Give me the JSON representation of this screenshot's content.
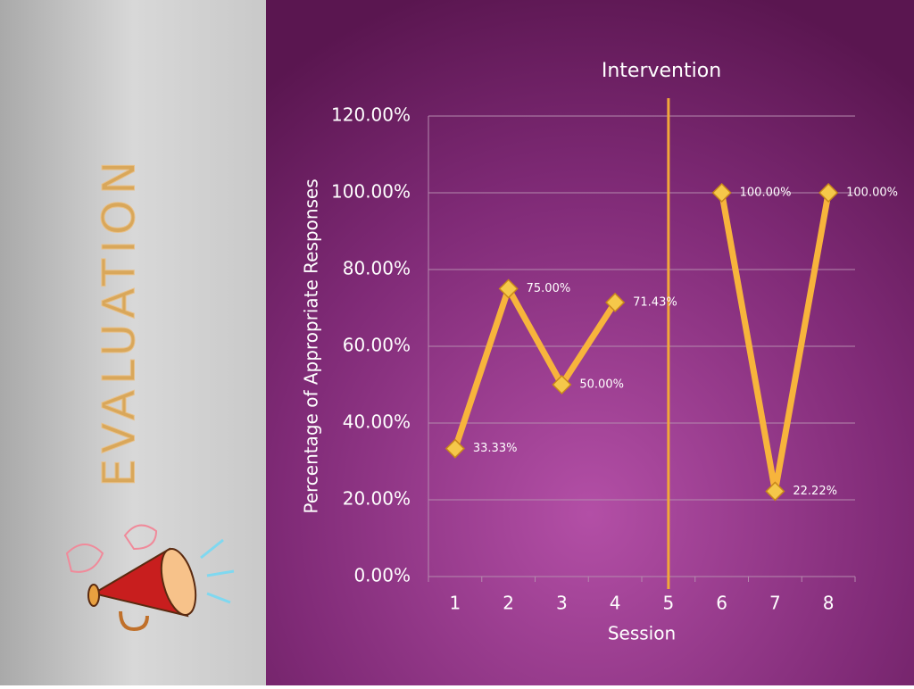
{
  "side_title": "EVALUATION",
  "chart_data": {
    "type": "line",
    "x_label": "Session",
    "y_label": "Percentage of Appropriate Responses",
    "categories": [
      "1",
      "2",
      "3",
      "4",
      "5",
      "6",
      "7",
      "8"
    ],
    "values": [
      33.33,
      75,
      50,
      71.43,
      null,
      100,
      22.22,
      100
    ],
    "value_labels": [
      "33.33%",
      "75.00%",
      "50.00%",
      "71.43%",
      null,
      "100.00%",
      "22.22%",
      "100.00%"
    ],
    "color": "#f7b43c",
    "ylim": [
      0,
      120
    ],
    "yticks": [
      {
        "value": 0,
        "label": "0.00%"
      },
      {
        "value": 20,
        "label": "20.00%"
      },
      {
        "value": 40,
        "label": "40.00%"
      },
      {
        "value": 60,
        "label": "60.00%"
      },
      {
        "value": 80,
        "label": "80.00%"
      },
      {
        "value": 100,
        "label": "100.00%"
      },
      {
        "value": 120,
        "label": "120.00%"
      }
    ],
    "grid": true,
    "intervention": {
      "label": "Intervention",
      "x": "5"
    }
  }
}
